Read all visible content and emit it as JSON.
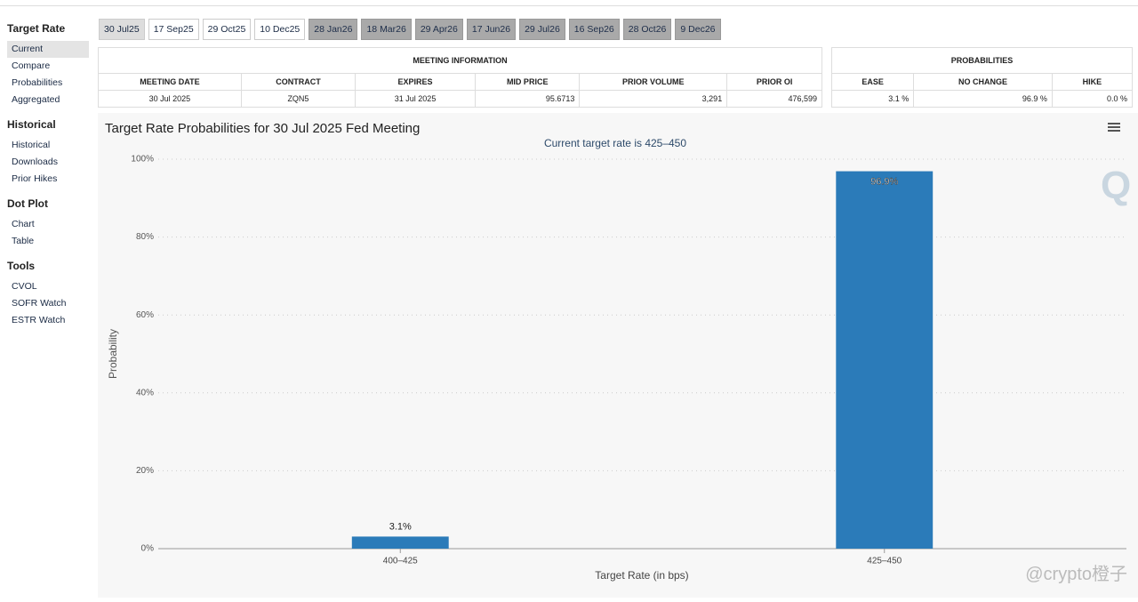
{
  "sidebar": [
    {
      "heading": "Target Rate",
      "items": [
        "Current",
        "Compare",
        "Probabilities",
        "Aggregated"
      ]
    },
    {
      "heading": "Historical",
      "items": [
        "Historical",
        "Downloads",
        "Prior Hikes"
      ]
    },
    {
      "heading": "Dot Plot",
      "items": [
        "Chart",
        "Table"
      ]
    },
    {
      "heading": "Tools",
      "items": [
        "CVOL",
        "SOFR Watch",
        "ESTR Watch"
      ]
    }
  ],
  "tabs": [
    "30 Jul25",
    "17 Sep25",
    "29 Oct25",
    "10 Dec25",
    "28 Jan26",
    "18 Mar26",
    "29 Apr26",
    "17 Jun26",
    "29 Jul26",
    "16 Sep26",
    "28 Oct26",
    "9 Dec26"
  ],
  "meeting_table": {
    "title": "MEETING INFORMATION",
    "headers": [
      "MEETING DATE",
      "CONTRACT",
      "EXPIRES",
      "MID PRICE",
      "PRIOR VOLUME",
      "PRIOR OI"
    ],
    "row": [
      "30 Jul 2025",
      "ZQN5",
      "31 Jul 2025",
      "95.6713",
      "3,291",
      "476,599"
    ]
  },
  "probability_table": {
    "title": "PROBABILITIES",
    "headers": [
      "EASE",
      "NO CHANGE",
      "HIKE"
    ],
    "row": [
      "3.1 %",
      "96.9 %",
      "0.0 %"
    ]
  },
  "chart_data": {
    "type": "bar",
    "title": "Target Rate Probabilities for 30 Jul 2025 Fed Meeting",
    "subtitle": "Current target rate is 425–450",
    "categories": [
      "400–425",
      "425–450"
    ],
    "values": [
      3.1,
      96.9
    ],
    "value_labels": [
      "3.1%",
      "96.9%"
    ],
    "color": "#2b7bb9",
    "ylim": [
      0,
      100
    ],
    "yticks": [
      {
        "value": 0,
        "label": "0%"
      },
      {
        "value": 20,
        "label": "20%"
      },
      {
        "value": 40,
        "label": "40%"
      },
      {
        "value": 60,
        "label": "60%"
      },
      {
        "value": 80,
        "label": "80%"
      },
      {
        "value": 100,
        "label": "100%"
      }
    ],
    "xlabel": "Target Rate (in bps)",
    "ylabel": "Probability",
    "grid": true
  },
  "watermark": "@crypto橙子"
}
